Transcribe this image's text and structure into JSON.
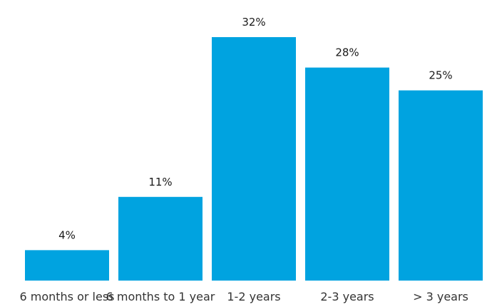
{
  "chart_data": {
    "type": "bar",
    "categories": [
      "6 months or less",
      "6 months to 1 year",
      "1-2 years",
      "2-3 years",
      "> 3 years"
    ],
    "values": [
      4,
      11,
      32,
      28,
      25
    ],
    "value_labels": [
      "4%",
      "11%",
      "32%",
      "28%",
      "25%"
    ],
    "title": "",
    "xlabel": "",
    "ylabel": "",
    "ylim": [
      0,
      32
    ],
    "grid": false,
    "legend": "none",
    "bar_color": "#00a3e0"
  }
}
